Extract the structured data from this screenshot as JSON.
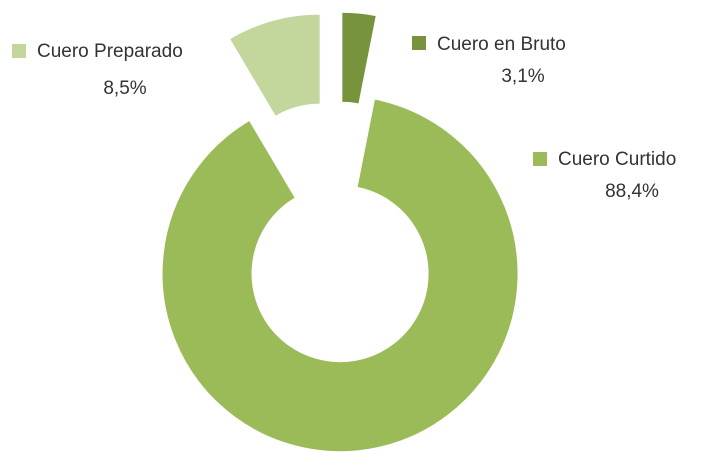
{
  "chart_data": {
    "type": "donut",
    "categories": [
      "Cuero en Bruto",
      "Cuero Curtido",
      "Cuero Preparado"
    ],
    "values": [
      3.1,
      88.4,
      8.5
    ],
    "value_labels": [
      "3,1%",
      "88,4%",
      "8,5%"
    ],
    "colors": [
      "#77933c",
      "#9bbb59",
      "#c3d69b"
    ]
  }
}
